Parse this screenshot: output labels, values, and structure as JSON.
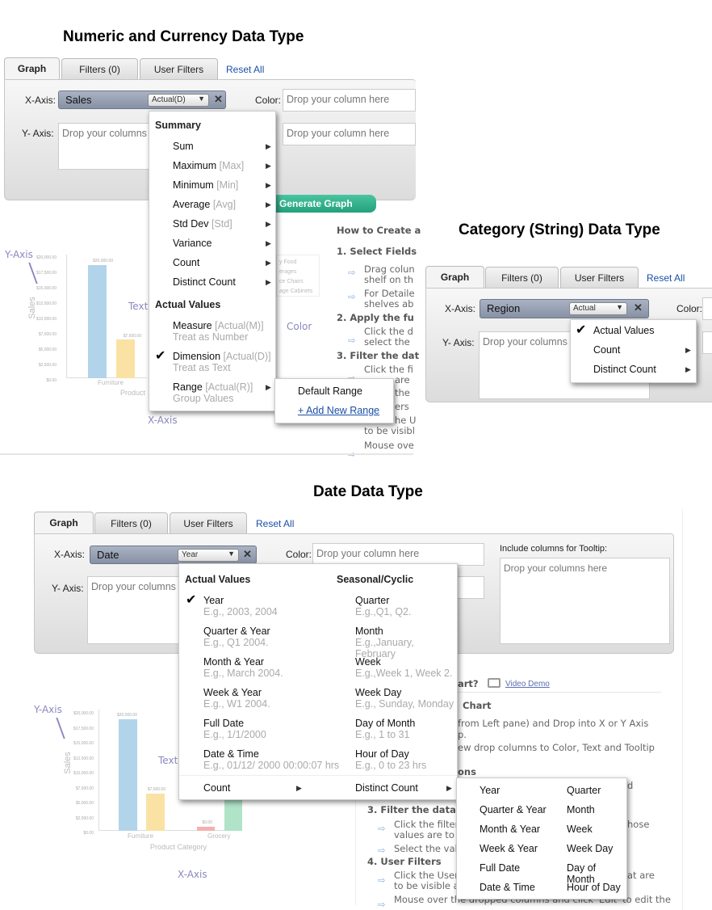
{
  "sections": [
    {
      "title": "Numeric and Currency Data Type",
      "tabs": [
        "Graph",
        "Filters (0)",
        "User Filters"
      ],
      "reset": "Reset All",
      "x_label": "X-Axis:",
      "x_value": "Sales",
      "x_agg": "Actual(D)",
      "color_label": "Color:",
      "color_placeholder": "Drop your column here",
      "y_label": "Y- Axis:",
      "y_placeholder": "Drop your columns here",
      "text_placeholder": "Drop your column here",
      "generate": "Generate Graph",
      "menu": {
        "summary_header": "Summary",
        "summary": [
          {
            "label": "Sum",
            "tag": ""
          },
          {
            "label": "Maximum",
            "tag": "[Max]"
          },
          {
            "label": "Minimum",
            "tag": "[Min]"
          },
          {
            "label": "Average",
            "tag": "[Avg]"
          },
          {
            "label": "Std Dev",
            "tag": "[Std]"
          },
          {
            "label": "Variance",
            "tag": ""
          },
          {
            "label": "Count",
            "tag": ""
          },
          {
            "label": "Distinct Count",
            "tag": ""
          }
        ],
        "actual_header": "Actual Values",
        "actual": [
          {
            "label": "Measure",
            "tag": "[Actual(M)]",
            "sub": "Treat as Number",
            "checked": false
          },
          {
            "label": "Dimension",
            "tag": "[Actual(D)]",
            "sub": "Treat as Text",
            "checked": true
          },
          {
            "label": "Range",
            "tag": "[Actual(R)]",
            "sub": "Group Values",
            "checked": false
          }
        ]
      },
      "submenu": {
        "default": "Default Range",
        "add": "+ Add New Range"
      },
      "chart": {
        "y_ann": "Y-Axis",
        "x_ann": "X-Axis",
        "text_ann": "Text",
        "color_ann": "Color",
        "ylabel": "Sales",
        "xlabel": "Product",
        "cat": "Furniture",
        "ticks": [
          "$20,000.00",
          "$17,500.00",
          "$15,000.00",
          "$12,500.00",
          "$10,000.00",
          "$7,500.00",
          "$5,000.00",
          "$2,500.00",
          "$0.00"
        ],
        "bar_labels": [
          "$20,000.00",
          "$7,500.00"
        ],
        "legend": [
          "y Food",
          "erages",
          "ce Chairs",
          "age Cabinets"
        ]
      },
      "instructions": [
        "How to Create a",
        "1. Select Fields",
        "Drag colun",
        "shelf on th",
        "For Detaile",
        "shelves ab",
        "2. Apply the fu",
        "Click the d",
        "select the",
        "3. Filter the dat",
        "Click the fi",
        "are",
        "the",
        "ers",
        "he U",
        "to be visibl",
        "Mouse ove"
      ]
    },
    {
      "title": "Category (String) Data Type",
      "tabs": [
        "Graph",
        "Filters (0)",
        "User Filters"
      ],
      "reset": "Reset All",
      "x_label": "X-Axis:",
      "x_value": "Region",
      "x_agg": "Actual",
      "color_label": "Color:",
      "y_label": "Y- Axis:",
      "y_placeholder": "Drop your columns here",
      "menu": [
        {
          "label": "Actual Values",
          "checked": true,
          "arrow": false
        },
        {
          "label": "Count",
          "checked": false,
          "arrow": true
        },
        {
          "label": "Distinct Count",
          "checked": false,
          "arrow": true
        }
      ]
    },
    {
      "title": "Date Data Type",
      "tabs": [
        "Graph",
        "Filters (0)",
        "User Filters"
      ],
      "reset": "Reset All",
      "x_label": "X-Axis:",
      "x_value": "Date",
      "x_agg": "Year",
      "color_label": "Color:",
      "color_placeholder": "Drop your column here",
      "tooltip_label": "Include columns for Tooltip:",
      "tooltip_placeholder": "Drop your columns here",
      "y_label": "Y- Axis:",
      "y_placeholder": "Drop your columns here",
      "menu": {
        "col1_header": "Actual Values",
        "col2_header": "Seasonal/Cyclic",
        "col1": [
          {
            "label": "Year",
            "sub": "E.g., 2003, 2004",
            "checked": true
          },
          {
            "label": "Quarter & Year",
            "sub": "E.g., Q1 2004."
          },
          {
            "label": "Month & Year",
            "sub": "E.g., March 2004."
          },
          {
            "label": "Week & Year",
            "sub": "E.g., W1 2004."
          },
          {
            "label": "Full Date",
            "sub": "E.g., 1/1/2000"
          },
          {
            "label": "Date & Time",
            "sub": "E.g., 01/12/ 2000 00:00:07 hrs"
          }
        ],
        "col2": [
          {
            "label": "Quarter",
            "sub": "E.g.,Q1, Q2."
          },
          {
            "label": "Month",
            "sub": "E.g.,January, February"
          },
          {
            "label": "Week",
            "sub": "E.g.,Week 1, Week 2."
          },
          {
            "label": "Week Day",
            "sub": "E.g., Sunday, Monday"
          },
          {
            "label": "Day of Month",
            "sub": "E.g., 1 to 31"
          },
          {
            "label": "Hour of Day",
            "sub": "E.g., 0 to 23 hrs"
          }
        ],
        "count": "Count",
        "distinct": "Distinct Count"
      },
      "submenu": {
        "col1": [
          "Year",
          "Quarter & Year",
          "Month & Year",
          "Week & Year",
          "Full Date",
          "Date & Time"
        ],
        "col2": [
          "Quarter",
          "Month",
          "Week",
          "Week Day",
          "Day of Month",
          "Hour of Day"
        ]
      },
      "help": {
        "q": "art?",
        "video": "Video Demo",
        "lines": [
          "Chart",
          "from Left pane) and Drop into X or Y Axis",
          "p.",
          "ew drop columns to Color, Text and Tooltip",
          "ons",
          "d",
          "3. Filter the data.",
          "Click the filter",
          "hose",
          "values are to",
          "Select the val",
          "4. User Filters",
          "Click the User",
          "at are",
          "to be visible a",
          "Mouse over the dropped columns and click 'Edit' to edit the"
        ]
      },
      "chart": {
        "y_ann": "Y-Axis",
        "x_ann": "X-Axis",
        "text_ann": "Text",
        "ylabel": "Sales",
        "xlabel": "Product Category",
        "cats": [
          "Furniture",
          "Grocery"
        ],
        "ticks": [
          "$20,000.00",
          "$17,500.00",
          "$15,000.00",
          "$12,500.00",
          "$10,000.00",
          "$7,500.00",
          "$5,000.00",
          "$2,500.00",
          "$0.00"
        ],
        "bar_labels": [
          "$20,000.00",
          "$7,500.00",
          "$0.00"
        ]
      }
    }
  ],
  "colors": {
    "link": "#1a4fa8",
    "generate": "#2fae8b",
    "pill": "#98a2b4",
    "annotation": "#8a87c0"
  }
}
